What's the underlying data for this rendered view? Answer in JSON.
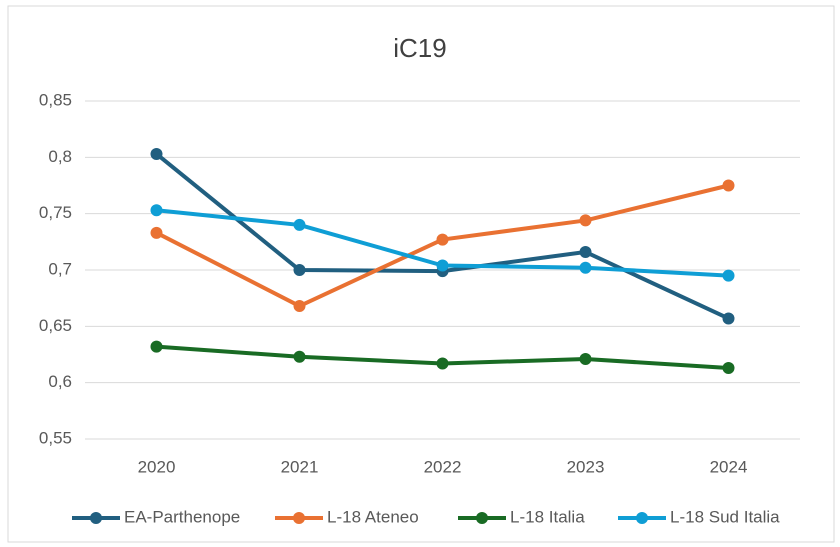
{
  "chart_data": {
    "type": "line",
    "title": "iC19",
    "categories": [
      "2020",
      "2021",
      "2022",
      "2023",
      "2024"
    ],
    "series": [
      {
        "name": "EA-Parthenope",
        "color": "#215f80",
        "values": [
          0.803,
          0.7,
          0.699,
          0.716,
          0.657
        ]
      },
      {
        "name": "L-18 Ateneo",
        "color": "#e97132",
        "values": [
          0.733,
          0.668,
          0.727,
          0.744,
          0.775
        ]
      },
      {
        "name": "L-18 Italia",
        "color": "#196b24",
        "values": [
          0.632,
          0.623,
          0.617,
          0.621,
          0.613
        ]
      },
      {
        "name": "L-18 Sud Italia",
        "color": "#0f9ed5",
        "values": [
          0.753,
          0.74,
          0.704,
          0.702,
          0.695
        ]
      }
    ],
    "ylim": [
      0.55,
      0.85
    ],
    "yticks": [
      {
        "value": 0.55,
        "label": "0,55"
      },
      {
        "value": 0.6,
        "label": "0,6"
      },
      {
        "value": 0.65,
        "label": "0,65"
      },
      {
        "value": 0.7,
        "label": "0,7"
      },
      {
        "value": 0.75,
        "label": "0,75"
      },
      {
        "value": 0.8,
        "label": "0,8"
      },
      {
        "value": 0.85,
        "label": "0,85"
      }
    ],
    "grid": true,
    "legend": "bottom"
  }
}
